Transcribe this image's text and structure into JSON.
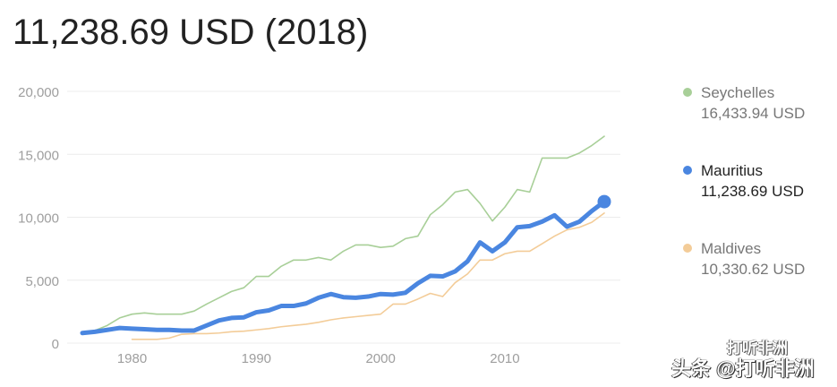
{
  "title": "11,238.69 USD (2018)",
  "colors": {
    "Seychelles": "#a8cf98",
    "Mauritius": "#4a86e0",
    "Maldives": "#f3cc98",
    "grid": "#ececec",
    "tick": "#9e9e9e"
  },
  "legend": [
    {
      "name": "Seychelles",
      "value": "16,433.94 USD"
    },
    {
      "name": "Mauritius",
      "value": "11,238.69 USD"
    },
    {
      "name": "Maldives",
      "value": "10,330.62 USD"
    }
  ],
  "watermark": {
    "logo_text": "打听非洲",
    "text": "头条 @打听非洲"
  },
  "chart_data": {
    "type": "line",
    "title": "11,238.69 USD (2018)",
    "xlabel": "",
    "ylabel": "",
    "ylim": [
      0,
      20000
    ],
    "xlim": [
      1976,
      2018
    ],
    "yticks": [
      0,
      5000,
      10000,
      15000,
      20000
    ],
    "ytick_labels": [
      "0",
      "5,000",
      "10,000",
      "15,000",
      "20,000"
    ],
    "xticks": [
      1980,
      1990,
      2000,
      2010
    ],
    "xtick_labels": [
      "1980",
      "1990",
      "2000",
      "2010"
    ],
    "grid": true,
    "legend_position": "right",
    "highlighted_series": "Mauritius",
    "series": [
      {
        "name": "Seychelles",
        "start_year": 1976,
        "values": [
          800,
          1000,
          1400,
          2000,
          2300,
          2400,
          2300,
          2300,
          2300,
          2550,
          3100,
          3600,
          4100,
          4400,
          5300,
          5300,
          6100,
          6600,
          6600,
          6800,
          6600,
          7300,
          7800,
          7800,
          7600,
          7700,
          8300,
          8500,
          10200,
          11000,
          12000,
          12200,
          11100,
          9700,
          10800,
          12200,
          12000,
          14700,
          14700,
          14700,
          15100,
          15700,
          16433.94
        ]
      },
      {
        "name": "Mauritius",
        "start_year": 1976,
        "values": [
          800,
          900,
          1050,
          1200,
          1150,
          1100,
          1050,
          1050,
          1000,
          1000,
          1400,
          1800,
          2000,
          2050,
          2450,
          2600,
          2950,
          2950,
          3150,
          3600,
          3900,
          3650,
          3600,
          3700,
          3900,
          3850,
          4000,
          4750,
          5350,
          5300,
          5700,
          6500,
          8000,
          7300,
          8000,
          9200,
          9300,
          9650,
          10150,
          9250,
          9650,
          10500,
          11238.69
        ]
      },
      {
        "name": "Maldives",
        "start_year": 1980,
        "values": [
          300,
          300,
          300,
          400,
          700,
          750,
          750,
          800,
          900,
          950,
          1050,
          1150,
          1300,
          1400,
          1500,
          1650,
          1850,
          2000,
          2100,
          2200,
          2300,
          3100,
          3100,
          3500,
          3950,
          3700,
          4800,
          5500,
          6600,
          6600,
          7100,
          7300,
          7300,
          7900,
          8500,
          9000,
          9200,
          9600,
          10330.62
        ]
      }
    ]
  }
}
